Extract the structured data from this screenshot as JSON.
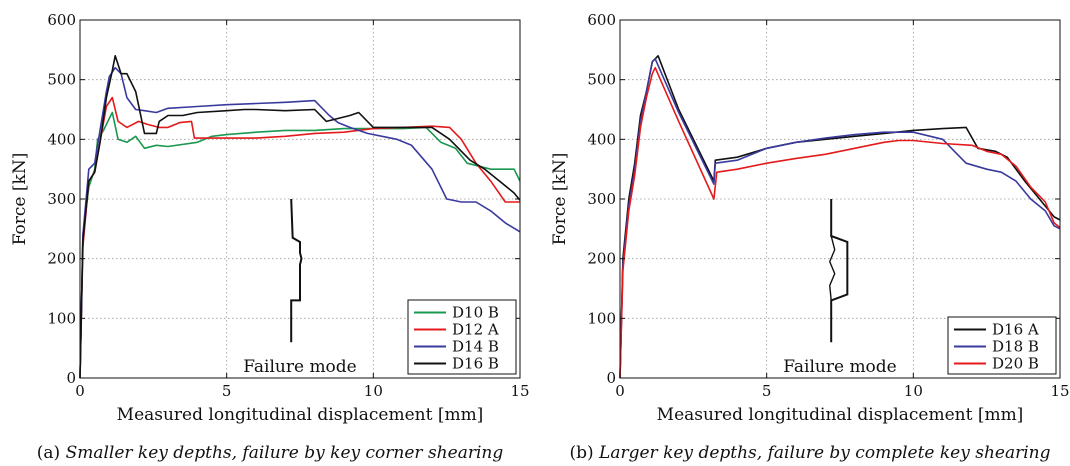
{
  "colors": {
    "green": "#1a9850",
    "red": "#e41a1c",
    "blue": "#3a3a9e",
    "black": "#111111",
    "grid": "#9a9a9a"
  },
  "captions": [
    {
      "label": "(a)",
      "text": "Smaller key depths, failure by key corner shearing"
    },
    {
      "label": "(b)",
      "text": "Larger key depths, failure by complete key shearing"
    }
  ],
  "chart_data": [
    {
      "type": "line",
      "xlabel": "Measured longitudinal displacement [mm]",
      "ylabel": "Force [kN]",
      "xlim": [
        0,
        15
      ],
      "ylim": [
        0,
        600
      ],
      "xticks": [
        0,
        5,
        10,
        15
      ],
      "yticks": [
        0,
        100,
        200,
        300,
        400,
        500,
        600
      ],
      "grid": true,
      "legend": "bottom-right",
      "annotation": "Failure mode",
      "failure_icon": "key-corner-shear",
      "series": [
        {
          "name": "D10 B",
          "color": "green",
          "x": [
            0,
            0.1,
            0.3,
            0.5,
            0.6,
            0.8,
            1.0,
            1.1,
            1.3,
            1.6,
            1.9,
            2.2,
            2.6,
            3.0,
            4.0,
            4.5,
            5.0,
            6.0,
            7.0,
            8.0,
            9.0,
            10.0,
            11.0,
            11.8,
            12.3,
            12.8,
            13.2,
            14.0,
            14.8,
            15.0
          ],
          "y": [
            0,
            240,
            320,
            350,
            400,
            415,
            435,
            445,
            400,
            395,
            405,
            385,
            390,
            388,
            395,
            405,
            408,
            412,
            415,
            415,
            418,
            418,
            418,
            420,
            395,
            385,
            360,
            350,
            350,
            330
          ]
        },
        {
          "name": "D12 A",
          "color": "red",
          "x": [
            0,
            0.1,
            0.3,
            0.5,
            0.7,
            0.9,
            1.1,
            1.3,
            1.6,
            2.0,
            2.3,
            2.7,
            3.0,
            3.4,
            3.8,
            3.9,
            5.0,
            6.0,
            7.0,
            8.0,
            9.0,
            10.0,
            11.0,
            12.0,
            12.6,
            13.0,
            13.5,
            14.0,
            14.5,
            15.0
          ],
          "y": [
            0,
            220,
            330,
            345,
            400,
            455,
            470,
            430,
            420,
            430,
            425,
            420,
            420,
            428,
            430,
            402,
            402,
            402,
            405,
            410,
            412,
            418,
            420,
            422,
            420,
            400,
            360,
            330,
            295,
            295
          ]
        },
        {
          "name": "D14 B",
          "color": "blue",
          "x": [
            0,
            0.1,
            0.3,
            0.5,
            0.7,
            0.9,
            1.0,
            1.2,
            1.4,
            1.6,
            1.9,
            2.2,
            2.6,
            3.0,
            4.0,
            5.0,
            6.0,
            7.0,
            8.0,
            8.5,
            8.8,
            9.2,
            9.8,
            10.3,
            10.8,
            11.3,
            12.0,
            12.5,
            13.0,
            13.5,
            14.0,
            14.5,
            15.0
          ],
          "y": [
            0,
            240,
            350,
            360,
            420,
            480,
            505,
            520,
            510,
            470,
            450,
            448,
            445,
            452,
            455,
            458,
            460,
            462,
            465,
            440,
            428,
            420,
            410,
            405,
            400,
            390,
            350,
            300,
            295,
            295,
            280,
            260,
            245
          ]
        },
        {
          "name": "D16 B",
          "color": "black",
          "x": [
            0,
            0.1,
            0.3,
            0.5,
            0.7,
            0.9,
            1.1,
            1.2,
            1.4,
            1.6,
            1.9,
            2.2,
            2.6,
            2.7,
            3.0,
            3.5,
            4.0,
            5.0,
            5.6,
            6.0,
            7.0,
            8.0,
            8.4,
            9.2,
            9.5,
            10.0,
            11.0,
            12.0,
            12.6,
            13.3,
            13.8,
            14.3,
            14.8,
            15.0
          ],
          "y": [
            0,
            230,
            330,
            345,
            400,
            470,
            515,
            540,
            510,
            510,
            480,
            410,
            410,
            430,
            440,
            440,
            445,
            448,
            450,
            450,
            448,
            450,
            430,
            440,
            445,
            420,
            420,
            420,
            400,
            365,
            350,
            330,
            310,
            298
          ]
        }
      ]
    },
    {
      "type": "line",
      "xlabel": "Measured longitudinal displacement [mm]",
      "ylabel": "Force [kN]",
      "xlim": [
        0,
        15
      ],
      "ylim": [
        0,
        600
      ],
      "xticks": [
        0,
        5,
        10,
        15
      ],
      "yticks": [
        0,
        100,
        200,
        300,
        400,
        500,
        600
      ],
      "grid": true,
      "legend": "bottom-right",
      "annotation": "Failure mode",
      "failure_icon": "complete-key-shear",
      "series": [
        {
          "name": "D16 A",
          "color": "black",
          "x": [
            0,
            0.1,
            0.3,
            0.5,
            0.7,
            0.9,
            1.1,
            1.3,
            2.0,
            3.2,
            3.25,
            4.0,
            5.0,
            6.0,
            7.0,
            8.0,
            9.0,
            10.0,
            11.0,
            11.8,
            12.2,
            12.8,
            13.2,
            13.8,
            14.3,
            14.8,
            15.0
          ],
          "y": [
            0,
            200,
            300,
            360,
            440,
            480,
            530,
            540,
            450,
            330,
            365,
            370,
            385,
            395,
            400,
            405,
            410,
            415,
            418,
            420,
            385,
            380,
            370,
            330,
            300,
            270,
            265
          ]
        },
        {
          "name": "D18 B",
          "color": "blue",
          "x": [
            0,
            0.1,
            0.3,
            0.5,
            0.7,
            0.9,
            1.1,
            1.2,
            2.0,
            3.2,
            3.25,
            4.0,
            5.0,
            6.0,
            7.0,
            8.0,
            9.0,
            10.0,
            11.0,
            11.4,
            11.8,
            12.5,
            13.0,
            13.5,
            14.0,
            14.5,
            14.8,
            15.0
          ],
          "y": [
            0,
            190,
            290,
            350,
            430,
            480,
            530,
            535,
            445,
            325,
            360,
            365,
            385,
            395,
            402,
            408,
            412,
            412,
            400,
            380,
            360,
            350,
            345,
            330,
            300,
            280,
            255,
            250
          ]
        },
        {
          "name": "D20 B",
          "color": "red",
          "x": [
            0,
            0.1,
            0.3,
            0.5,
            0.7,
            0.9,
            1.1,
            1.2,
            2.0,
            3.2,
            3.3,
            4.0,
            5.0,
            6.0,
            7.0,
            8.0,
            8.5,
            9.0,
            9.5,
            10.0,
            11.0,
            12.0,
            12.5,
            13.0,
            13.5,
            14.0,
            14.5,
            14.8,
            15.0
          ],
          "y": [
            0,
            180,
            280,
            340,
            420,
            470,
            510,
            520,
            430,
            300,
            345,
            350,
            360,
            368,
            375,
            385,
            390,
            395,
            398,
            398,
            393,
            390,
            380,
            375,
            355,
            320,
            295,
            260,
            252
          ]
        }
      ]
    }
  ]
}
